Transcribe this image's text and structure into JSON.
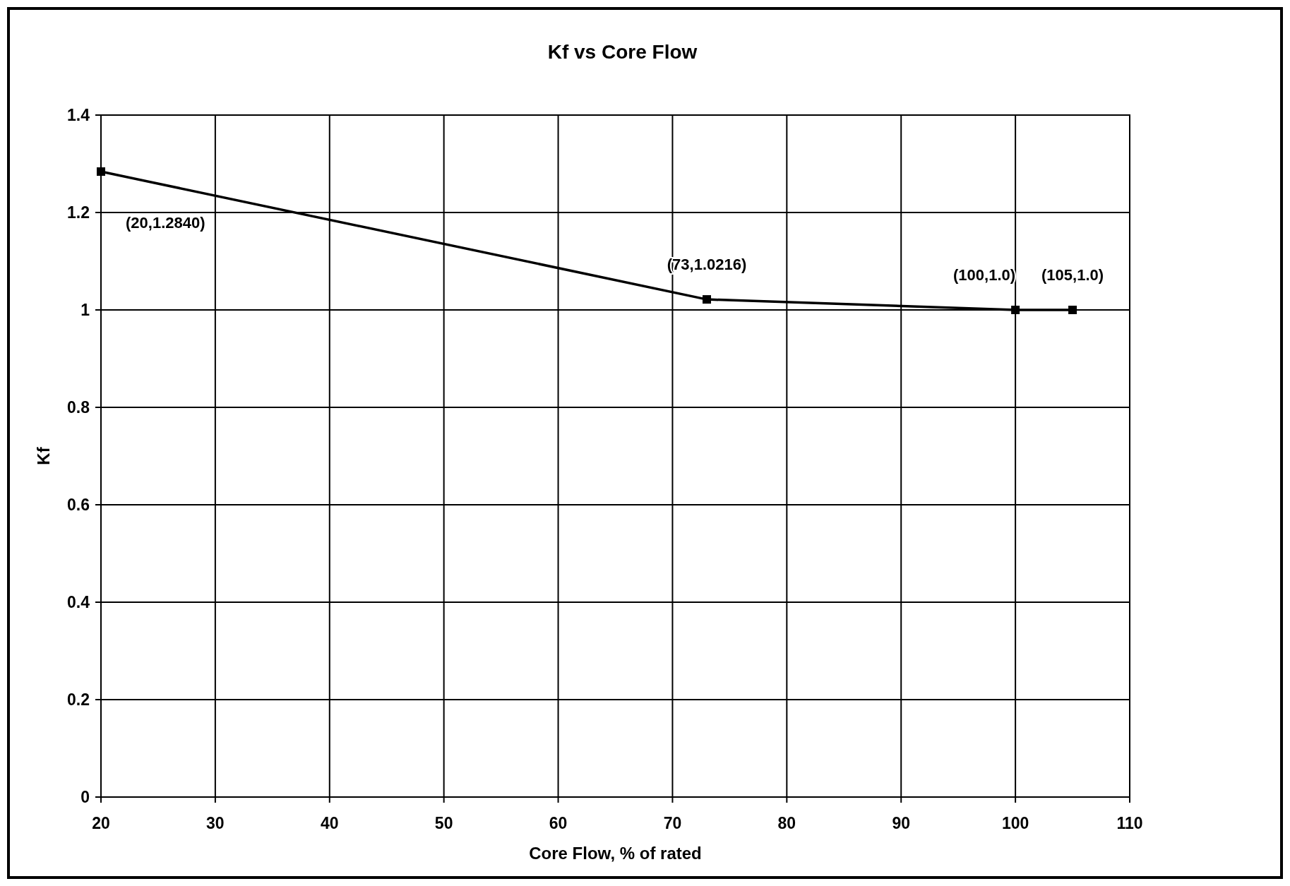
{
  "chart_data": {
    "type": "line",
    "title": "Kf vs Core Flow",
    "xlabel": "Core Flow, % of rated",
    "ylabel": "Kf",
    "x": [
      20,
      73,
      100,
      105
    ],
    "series": [
      {
        "color": "#000000",
        "values": [
          1.284,
          1.0216,
          1.0,
          1.0
        ],
        "value_labels": [
          "(20,1.2840)",
          "(73,1.0216)",
          "(100,1.0)",
          "(105,1.0)"
        ]
      }
    ],
    "xlim": [
      20,
      110
    ],
    "xticks": [
      20,
      30,
      40,
      50,
      60,
      70,
      80,
      90,
      100,
      110
    ],
    "ylim": [
      0,
      1.4
    ],
    "yticks": [
      0,
      0.2,
      0.4,
      0.6,
      0.8,
      1,
      1.2,
      1.4
    ],
    "grid": true,
    "marker": "square",
    "line_style": "solid"
  }
}
